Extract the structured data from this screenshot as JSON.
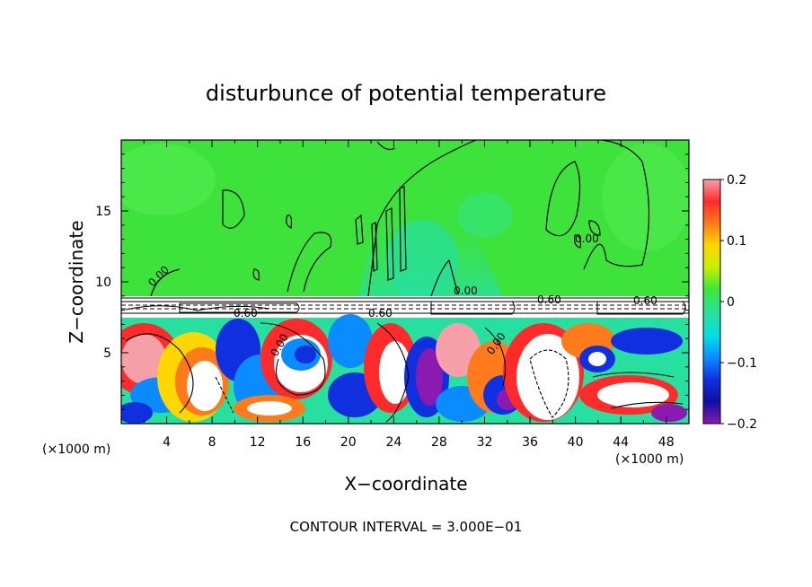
{
  "chart_data": {
    "type": "heatmap",
    "title": "disturbunce of potential temperature",
    "xlabel": "X−coordinate",
    "ylabel": "Z−coordinate",
    "x_unit": "(×1000 m)",
    "x_unit_right": "(×1000 m)",
    "footer": "CONTOUR INTERVAL = 3.000E−01",
    "xlim": [
      0,
      50
    ],
    "ylim": [
      0,
      20
    ],
    "x_ticks": [
      4,
      8,
      12,
      16,
      20,
      24,
      28,
      32,
      36,
      40,
      44,
      48
    ],
    "x_tick_labels": [
      "4",
      "8",
      "12",
      "16",
      "20",
      "24",
      "28",
      "32",
      "36",
      "40",
      "44",
      "48"
    ],
    "y_ticks": [
      5,
      10,
      15
    ],
    "y_tick_labels": [
      "5",
      "10",
      "15"
    ],
    "colorbar": {
      "range": [
        -0.2,
        0.2
      ],
      "ticks": [
        0.2,
        0.1,
        0,
        -0.1,
        -0.2
      ],
      "tick_labels": [
        "0.2",
        "0.1",
        "0",
        "−0.1",
        "−0.2"
      ],
      "colors": [
        "#f5a0a8",
        "#ff2a2a",
        "#ff7a1a",
        "#ffd700",
        "#c8f000",
        "#39e83a",
        "#27e0a0",
        "#00e0e6",
        "#0a8bff",
        "#1030e0",
        "#1010a0",
        "#8a1ab0"
      ]
    },
    "contour_labels": [
      "0.00",
      "0.00",
      "0.60",
      "0.60",
      "0.00",
      "0.60",
      "0.00",
      "0.60",
      "0.00"
    ],
    "regions": {
      "upper_value": "near 0 (green)",
      "inversion_layer_z": [
        8.2,
        8.9
      ],
      "lower_layer": "turbulent eddies from −0.2 to 0.2"
    }
  },
  "colors": {
    "upper_green": "#3de23a",
    "light_green": "#55ec55",
    "teal": "#27e0a0"
  }
}
